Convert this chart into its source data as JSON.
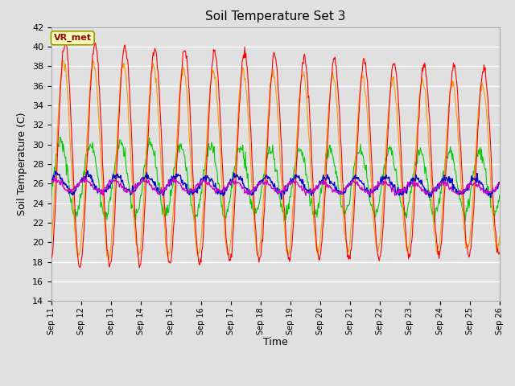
{
  "title": "Soil Temperature Set 3",
  "xlabel": "Time",
  "ylabel": "Soil Temperature (C)",
  "ylim": [
    14,
    42
  ],
  "yticks": [
    14,
    16,
    18,
    20,
    22,
    24,
    26,
    28,
    30,
    32,
    34,
    36,
    38,
    40,
    42
  ],
  "bg_color": "#e0e0e0",
  "grid_color": "#ffffff",
  "legend_label": "VR_met",
  "series_colors": {
    "Tsoil -2cm": "#ff0000",
    "Tsoil -4cm": "#ff9900",
    "Tsoil -8cm": "#00cc00",
    "Tsoil -16cm": "#0000cc",
    "Tsoil -32cm": "#cc00cc"
  },
  "xtick_labels": [
    "Sep 11",
    "Sep 12",
    "Sep 13",
    "Sep 14",
    "Sep 15",
    "Sep 16",
    "Sep 17",
    "Sep 18",
    "Sep 19",
    "Sep 20",
    "Sep 21",
    "Sep 22",
    "Sep 23",
    "Sep 24",
    "Sep 25",
    "Sep 26"
  ],
  "n_days": 15,
  "n_per_day": 48
}
